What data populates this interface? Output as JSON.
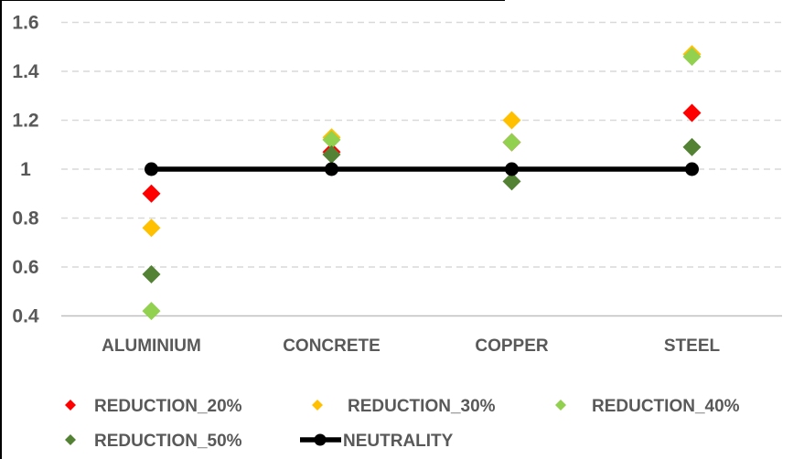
{
  "chart_data": {
    "type": "scatter",
    "title": "",
    "xlabel": "",
    "ylabel": "",
    "categories": [
      "ALUMINIUM",
      "CONCRETE",
      "COPPER",
      "STEEL"
    ],
    "series": [
      {
        "name": "REDUCTION_20%",
        "marker": "diamond",
        "color": "#FF0000",
        "values": [
          0.9,
          1.07,
          1.11,
          1.23
        ]
      },
      {
        "name": "REDUCTION_30%",
        "marker": "diamond",
        "color": "#FFC000",
        "values": [
          0.76,
          1.13,
          1.2,
          1.47
        ]
      },
      {
        "name": "REDUCTION_40%",
        "marker": "diamond",
        "color": "#92D050",
        "values": [
          0.42,
          1.12,
          1.11,
          1.46
        ]
      },
      {
        "name": "REDUCTION_50%",
        "marker": "diamond",
        "color": "#548235",
        "values": [
          0.57,
          1.06,
          0.95,
          1.09
        ]
      },
      {
        "name": "NEUTRALITY",
        "marker": "line-dot",
        "color": "#000000",
        "values": [
          1.0,
          1.0,
          1.0,
          1.0
        ]
      }
    ],
    "y_axis": {
      "min": 0.4,
      "max": 1.6,
      "step": 0.2,
      "tick_labels": [
        "1.6",
        "1.4",
        "1.2",
        "1",
        "0.8",
        "0.6",
        "0.4"
      ]
    },
    "grid": "horizontal-dashed",
    "gridline_color": "#D9D9D9",
    "axis_line_color": "#BFBFBF",
    "label_color": "#595959",
    "legend_position": "bottom"
  }
}
